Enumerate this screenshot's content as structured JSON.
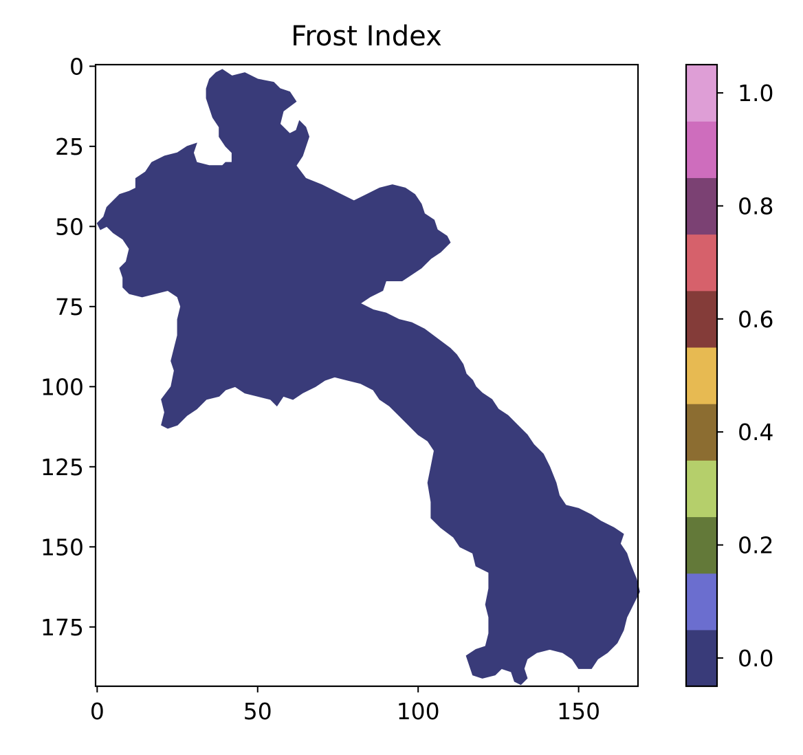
{
  "chart_data": {
    "type": "heatmap",
    "title": "Frost Index",
    "xlabel": "",
    "ylabel": "",
    "xlim": [
      -0.5,
      168.5
    ],
    "ylim": [
      193.5,
      -0.5
    ],
    "x_ticks": [
      "0",
      "50",
      "100",
      "150"
    ],
    "x_tick_values": [
      0,
      50,
      100,
      150
    ],
    "y_ticks": [
      "0",
      "25",
      "50",
      "75",
      "100",
      "125",
      "150",
      "175"
    ],
    "y_tick_values": [
      0,
      25,
      50,
      75,
      100,
      125,
      150,
      175
    ],
    "grid": false,
    "region_value": 0.0,
    "region_color": "#393b79",
    "region_outline": [
      [
        37,
        2
      ],
      [
        39,
        1
      ],
      [
        42,
        3
      ],
      [
        46,
        2
      ],
      [
        50,
        4
      ],
      [
        55,
        5
      ],
      [
        57,
        7
      ],
      [
        60,
        8
      ],
      [
        62,
        11
      ],
      [
        58,
        14
      ],
      [
        57,
        18
      ],
      [
        60,
        21
      ],
      [
        62,
        20
      ],
      [
        63,
        17
      ],
      [
        65,
        19
      ],
      [
        66,
        22
      ],
      [
        64,
        28
      ],
      [
        62,
        31
      ],
      [
        65,
        35
      ],
      [
        70,
        37
      ],
      [
        76,
        40
      ],
      [
        80,
        42
      ],
      [
        84,
        40
      ],
      [
        88,
        38
      ],
      [
        92,
        37
      ],
      [
        96,
        38
      ],
      [
        99,
        40
      ],
      [
        101,
        43
      ],
      [
        102,
        46
      ],
      [
        105,
        48
      ],
      [
        106,
        51
      ],
      [
        109,
        53
      ],
      [
        110,
        55
      ],
      [
        107,
        58
      ],
      [
        104,
        60
      ],
      [
        101,
        63
      ],
      [
        98,
        65
      ],
      [
        95,
        67
      ],
      [
        90,
        67
      ],
      [
        89,
        70
      ],
      [
        85,
        72
      ],
      [
        82,
        74
      ],
      [
        86,
        76
      ],
      [
        90,
        77
      ],
      [
        94,
        79
      ],
      [
        98,
        80
      ],
      [
        102,
        82
      ],
      [
        106,
        85
      ],
      [
        110,
        88
      ],
      [
        112,
        90
      ],
      [
        114,
        93
      ],
      [
        115,
        96
      ],
      [
        117,
        98
      ],
      [
        118,
        100
      ],
      [
        120,
        102
      ],
      [
        123,
        104
      ],
      [
        125,
        107
      ],
      [
        128,
        109
      ],
      [
        131,
        112
      ],
      [
        134,
        115
      ],
      [
        136,
        118
      ],
      [
        139,
        121
      ],
      [
        141,
        125
      ],
      [
        143,
        130
      ],
      [
        144,
        134
      ],
      [
        146,
        137
      ],
      [
        150,
        138
      ],
      [
        154,
        140
      ],
      [
        157,
        142
      ],
      [
        161,
        144
      ],
      [
        164,
        146
      ],
      [
        163,
        149
      ],
      [
        165,
        152
      ],
      [
        166,
        155
      ],
      [
        168,
        160
      ],
      [
        169,
        164
      ],
      [
        167,
        168
      ],
      [
        165,
        172
      ],
      [
        164,
        176
      ],
      [
        162,
        180
      ],
      [
        159,
        183
      ],
      [
        156,
        185
      ],
      [
        154,
        188
      ],
      [
        150,
        188
      ],
      [
        148,
        185
      ],
      [
        145,
        183
      ],
      [
        141,
        182
      ],
      [
        137,
        183
      ],
      [
        134,
        185
      ],
      [
        133,
        188
      ],
      [
        134,
        191
      ],
      [
        132,
        193
      ],
      [
        130,
        192
      ],
      [
        129,
        189
      ],
      [
        126,
        188
      ],
      [
        124,
        190
      ],
      [
        120,
        191
      ],
      [
        117,
        190
      ],
      [
        116,
        187
      ],
      [
        115,
        184
      ],
      [
        118,
        182
      ],
      [
        121,
        181
      ],
      [
        122,
        177
      ],
      [
        122,
        172
      ],
      [
        121,
        168
      ],
      [
        122,
        163
      ],
      [
        122,
        158
      ],
      [
        118,
        156
      ],
      [
        117,
        152
      ],
      [
        113,
        150
      ],
      [
        111,
        147
      ],
      [
        107,
        144
      ],
      [
        104,
        141
      ],
      [
        104,
        136
      ],
      [
        103,
        130
      ],
      [
        104,
        125
      ],
      [
        105,
        120
      ],
      [
        103,
        117
      ],
      [
        100,
        115
      ],
      [
        97,
        112
      ],
      [
        94,
        109
      ],
      [
        91,
        106
      ],
      [
        88,
        104
      ],
      [
        86,
        101
      ],
      [
        82,
        99
      ],
      [
        78,
        98
      ],
      [
        74,
        97
      ],
      [
        71,
        98
      ],
      [
        68,
        100
      ],
      [
        64,
        102
      ],
      [
        61,
        104
      ],
      [
        58,
        103
      ],
      [
        56,
        106
      ],
      [
        54,
        104
      ],
      [
        50,
        103
      ],
      [
        46,
        102
      ],
      [
        43,
        100
      ],
      [
        40,
        101
      ],
      [
        38,
        103
      ],
      [
        34,
        104
      ],
      [
        31,
        107
      ],
      [
        28,
        109
      ],
      [
        25,
        112
      ],
      [
        22,
        113
      ],
      [
        20,
        112
      ],
      [
        21,
        108
      ],
      [
        20,
        104
      ],
      [
        23,
        100
      ],
      [
        24,
        95
      ],
      [
        23,
        92
      ],
      [
        24,
        88
      ],
      [
        25,
        84
      ],
      [
        25,
        79
      ],
      [
        26,
        75
      ],
      [
        25,
        72
      ],
      [
        22,
        70
      ],
      [
        18,
        71
      ],
      [
        14,
        72
      ],
      [
        10,
        71
      ],
      [
        8,
        69
      ],
      [
        8,
        66
      ],
      [
        7,
        63
      ],
      [
        9,
        61
      ],
      [
        10,
        57
      ],
      [
        8,
        54
      ],
      [
        5,
        52
      ],
      [
        3,
        50
      ],
      [
        1,
        51
      ],
      [
        0,
        49
      ],
      [
        2,
        47
      ],
      [
        3,
        44
      ],
      [
        5,
        42
      ],
      [
        7,
        40
      ],
      [
        10,
        39
      ],
      [
        12,
        38
      ],
      [
        12,
        35
      ],
      [
        15,
        33
      ],
      [
        17,
        30
      ],
      [
        21,
        28
      ],
      [
        25,
        27
      ],
      [
        28,
        25
      ],
      [
        31,
        24
      ],
      [
        30,
        27
      ],
      [
        31,
        30
      ],
      [
        35,
        31
      ],
      [
        39,
        31
      ],
      [
        40,
        30
      ],
      [
        42,
        30
      ],
      [
        42,
        27
      ],
      [
        40,
        25
      ],
      [
        38,
        22
      ],
      [
        38,
        19
      ],
      [
        36,
        16
      ],
      [
        35,
        13
      ],
      [
        34,
        10
      ],
      [
        34,
        7
      ],
      [
        35,
        4
      ]
    ],
    "colorbar": {
      "ticks": [
        "0.0",
        "0.2",
        "0.4",
        "0.6",
        "0.8",
        "1.0"
      ],
      "tick_values": [
        0.0,
        0.2,
        0.4,
        0.6,
        0.8,
        1.0
      ],
      "range": [
        -0.05,
        1.05
      ],
      "colors": [
        "#393b79",
        "#6b6ecf",
        "#637939",
        "#b5cf6b",
        "#8c6d31",
        "#e7ba52",
        "#843c39",
        "#d6616b",
        "#7b4173",
        "#ce6dbd",
        "#de9ed6"
      ]
    }
  }
}
